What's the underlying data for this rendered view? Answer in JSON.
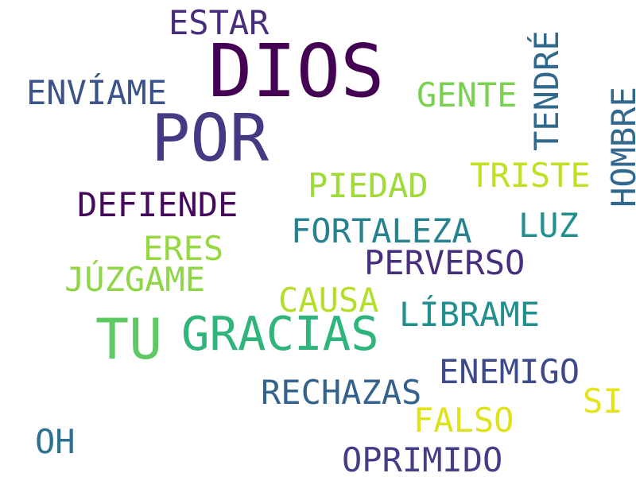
{
  "words": {
    "dios": {
      "text": "DIOS",
      "color": "#440154"
    },
    "por": {
      "text": "POR",
      "color": "#443983"
    },
    "tu": {
      "text": "TU",
      "color": "#5ec962"
    },
    "gracias": {
      "text": "GRACIAS",
      "color": "#2fb47c"
    },
    "estar": {
      "text": "ESTAR",
      "color": "#472d7b"
    },
    "enviame": {
      "text": "ENVÍAME",
      "color": "#3b528b"
    },
    "gente": {
      "text": "GENTE",
      "color": "#7ad151"
    },
    "tendre": {
      "text": "TENDRÉ",
      "color": "#31688e"
    },
    "hombre": {
      "text": "HOMBRE",
      "color": "#31688e"
    },
    "piedad": {
      "text": "PIEDAD",
      "color": "#a0da39"
    },
    "triste": {
      "text": "TRISTE",
      "color": "#c2df23"
    },
    "defiende": {
      "text": "DEFIENDE",
      "color": "#46085c"
    },
    "luz": {
      "text": "LUZ",
      "color": "#21908d"
    },
    "fortaleza": {
      "text": "FORTALEZA",
      "color": "#26828e"
    },
    "eres": {
      "text": "ERES",
      "color": "#95d840"
    },
    "perverso": {
      "text": "PERVERSO",
      "color": "#472f7d"
    },
    "juzgame": {
      "text": "JÚZGAME",
      "color": "#8ed645"
    },
    "causa": {
      "text": "CAUSA",
      "color": "#b5de2b"
    },
    "librame": {
      "text": "LÍBRAME",
      "color": "#218f8d"
    },
    "enemigo": {
      "text": "ENEMIGO",
      "color": "#3e4a89"
    },
    "rechazas": {
      "text": "RECHAZAS",
      "color": "#33638d"
    },
    "si": {
      "text": "SI",
      "color": "#e5e419"
    },
    "falso": {
      "text": "FALSO",
      "color": "#dde318"
    },
    "oh": {
      "text": "OH",
      "color": "#2c728e"
    },
    "oprimido": {
      "text": "OPRIMIDO",
      "color": "#433e85"
    }
  }
}
